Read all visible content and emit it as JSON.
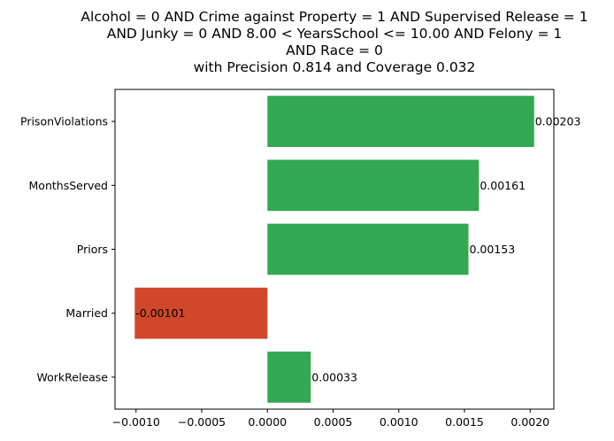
{
  "chart_data": {
    "type": "bar",
    "orientation": "horizontal",
    "title_lines": [
      "Alcohol = 0 AND Crime against Property = 1 AND Supervised Release = 1",
      "AND Junky = 0 AND 8.00 < YearsSchool <= 10.00 AND Felony = 1",
      "AND Race = 0",
      "with Precision 0.814 and Coverage 0.032"
    ],
    "categories": [
      "PrisonViolations",
      "MonthsServed",
      "Priors",
      "Married",
      "WorkRelease"
    ],
    "values": [
      0.00203,
      0.00161,
      0.00153,
      -0.00101,
      0.00033
    ],
    "value_labels": [
      "0.00203",
      "0.00161",
      "0.00153",
      "-0.00101",
      "0.00033"
    ],
    "xticks": [
      -0.001,
      -0.0005,
      0.0,
      0.0005,
      0.001,
      0.0015,
      0.002
    ],
    "xtick_labels": [
      "−0.0010",
      "−0.0005",
      "0.0000",
      "0.0005",
      "0.0010",
      "0.0015",
      "0.0020"
    ],
    "xlim": [
      -0.00116,
      0.00218
    ],
    "xlabel": "",
    "ylabel": "",
    "grid": false,
    "colors": {
      "positive": "#33a852",
      "negative": "#d0472a"
    }
  }
}
